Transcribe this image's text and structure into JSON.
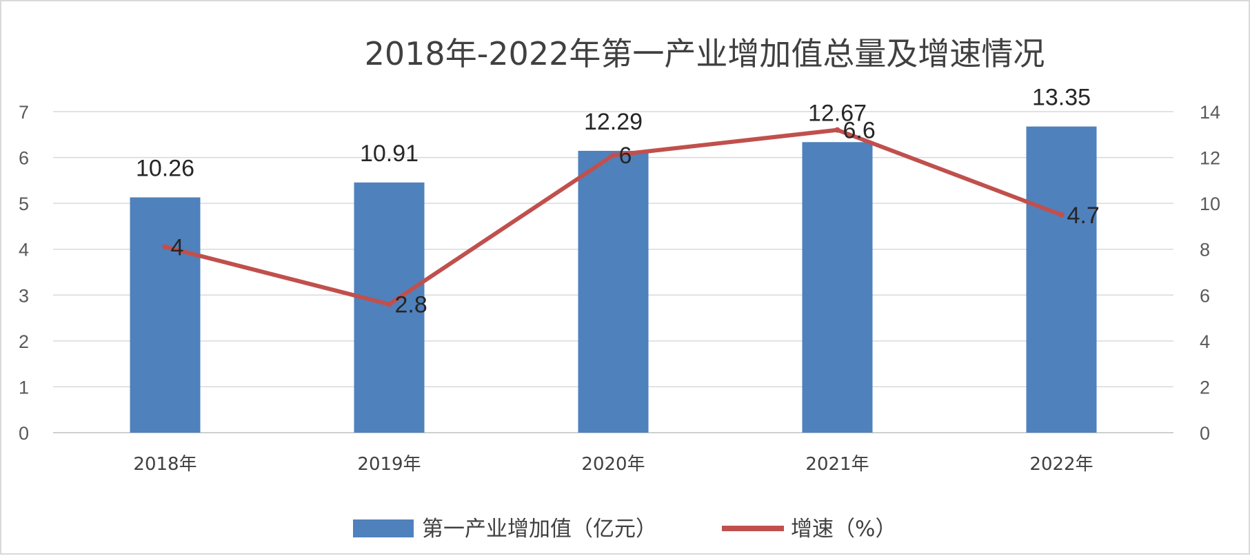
{
  "chart_data": {
    "type": "bar",
    "title": "2018年-2022年第一产业增加值总量及增速情况",
    "categories": [
      "2018年",
      "2019年",
      "2020年",
      "2021年",
      "2022年"
    ],
    "series": [
      {
        "name": "第一产业增加值（亿元）",
        "type": "bar",
        "axis": "left",
        "color": "#4f81bd",
        "values": [
          10.26,
          10.91,
          12.29,
          12.67,
          13.35
        ],
        "bar_heights_on_left_axis": [
          5.13,
          5.455,
          6.145,
          6.335,
          6.675
        ],
        "labels": [
          "10.26",
          "10.91",
          "12.29",
          "12.67",
          "13.35"
        ]
      },
      {
        "name": "增速（%）",
        "type": "line",
        "axis": "right",
        "color": "#c0504d",
        "values": [
          4,
          2.8,
          6,
          6.6,
          4.7
        ],
        "plotted_on_right_axis": [
          8.1,
          5.6,
          12.1,
          13.2,
          9.5
        ],
        "labels": [
          "4",
          "2.8",
          "6",
          "6.6",
          "4.7"
        ]
      }
    ],
    "y_left": {
      "min": 0,
      "max": 7,
      "ticks": [
        "0",
        "1",
        "2",
        "3",
        "4",
        "5",
        "6",
        "7"
      ]
    },
    "y_right": {
      "min": 0,
      "max": 14,
      "ticks": [
        "0",
        "2",
        "4",
        "6",
        "8",
        "10",
        "12",
        "14"
      ]
    },
    "grid": true,
    "legend_position": "bottom"
  }
}
